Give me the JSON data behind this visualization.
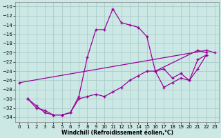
{
  "xlabel": "Windchill (Refroidissement éolien,°C)",
  "background_color": "#cce8e4",
  "grid_color": "#aacccc",
  "line_color": "#990099",
  "xlim": [
    -0.5,
    23.5
  ],
  "ylim": [
    -35,
    -9
  ],
  "yticks": [
    -10,
    -12,
    -14,
    -16,
    -18,
    -20,
    -22,
    -24,
    -26,
    -28,
    -30,
    -32,
    -34
  ],
  "xticks": [
    0,
    1,
    2,
    3,
    4,
    5,
    6,
    7,
    8,
    9,
    10,
    11,
    12,
    13,
    14,
    15,
    16,
    17,
    18,
    19,
    20,
    21,
    22,
    23
  ],
  "series": [
    [
      null,
      -30.0,
      -32.0,
      -32.5,
      -33.5,
      -33.5,
      -33.0,
      -29.5,
      -21.0,
      -15.0,
      -15.0,
      -10.5,
      -13.5,
      -14.0,
      -14.5,
      -16.5,
      -24.0,
      null,
      null,
      null,
      null,
      -19.5,
      -20.0,
      null
    ],
    [
      null,
      -30.0,
      -31.5,
      -33.0,
      -33.5,
      -33.5,
      -33.0,
      -30.0,
      -29.5,
      -29.0,
      -29.5,
      -28.5,
      -27.5,
      -26.0,
      -25.0,
      -24.0,
      -24.0,
      -27.5,
      -26.5,
      -25.5,
      -26.0,
      -21.5,
      -20.5,
      null
    ],
    [
      -26.5,
      null,
      null,
      null,
      null,
      null,
      null,
      null,
      null,
      null,
      null,
      null,
      null,
      null,
      null,
      null,
      null,
      null,
      null,
      null,
      null,
      null,
      -19.5,
      -20.0
    ],
    [
      null,
      null,
      null,
      null,
      null,
      null,
      null,
      null,
      null,
      null,
      null,
      null,
      null,
      null,
      null,
      null,
      -24.0,
      -23.5,
      -25.5,
      -24.5,
      -26.0,
      -23.5,
      -20.5,
      null
    ]
  ]
}
